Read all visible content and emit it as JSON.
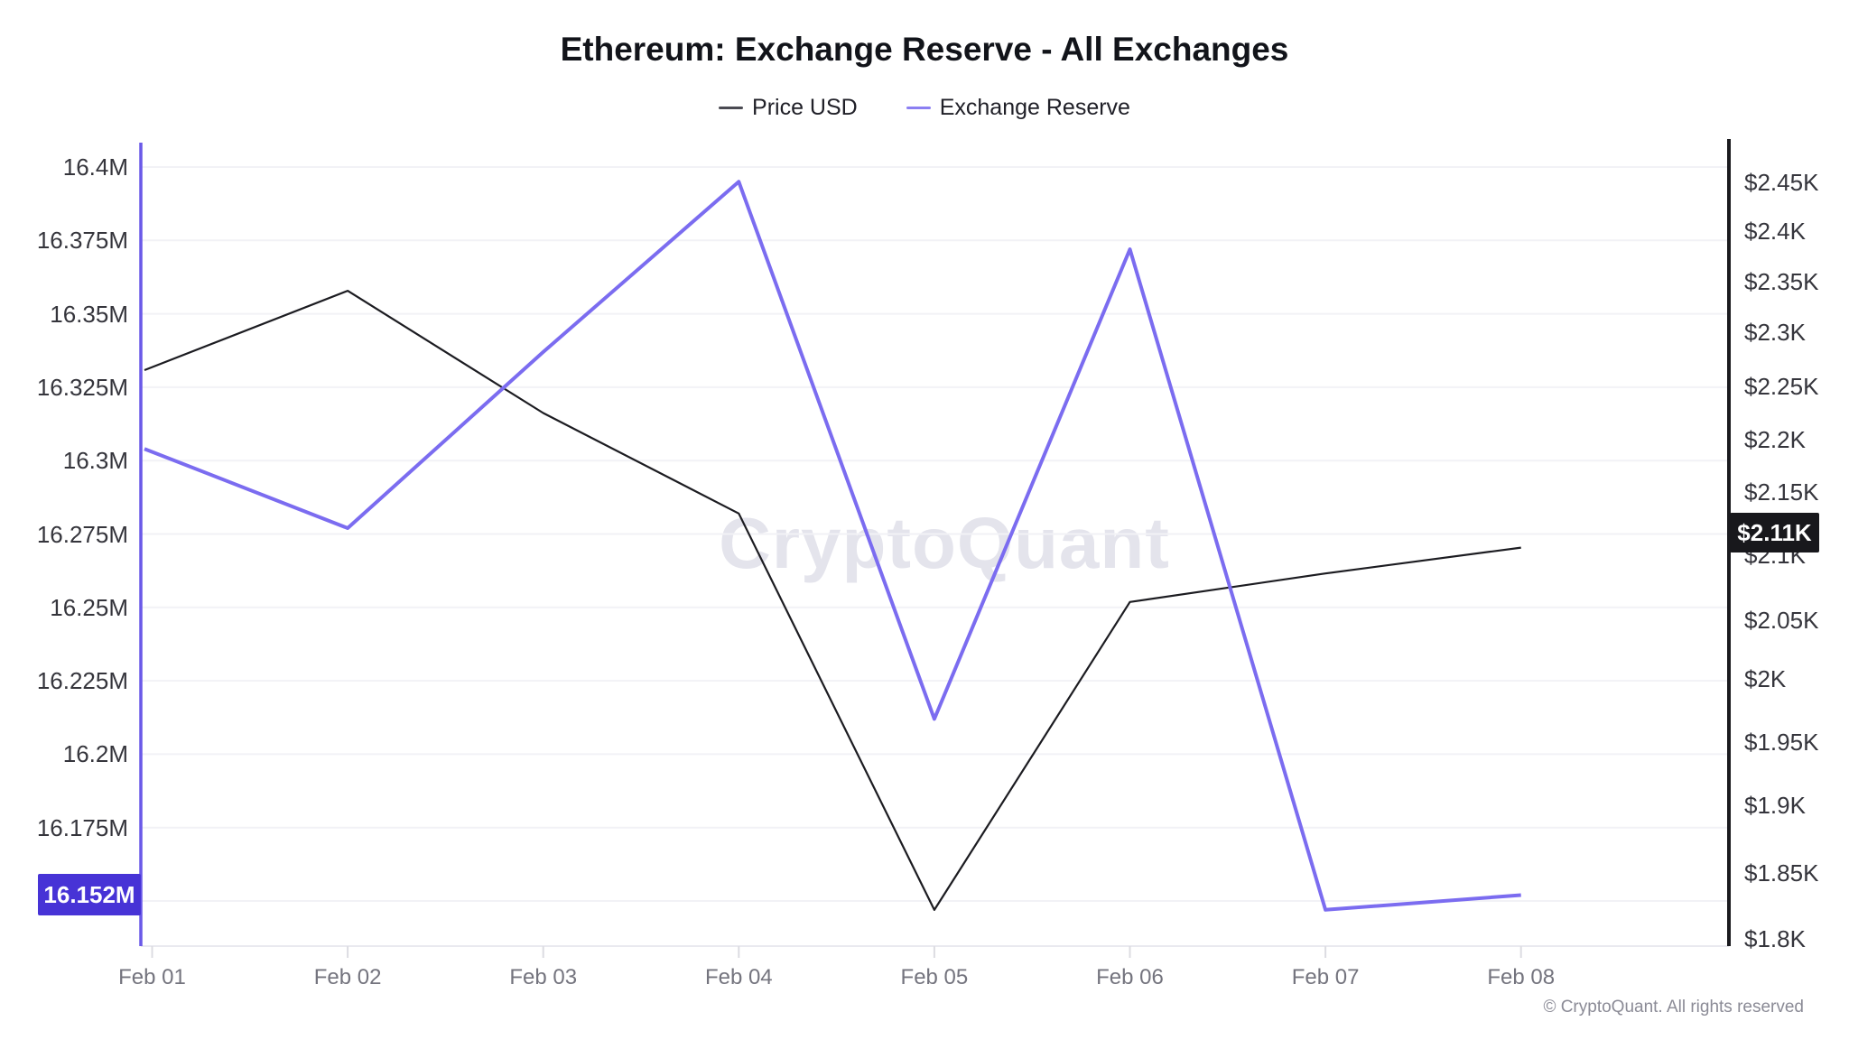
{
  "header": {
    "title": "Ethereum: Exchange Reserve - All Exchanges",
    "legend": [
      {
        "label": "Price USD",
        "color": "#4a4a52"
      },
      {
        "label": "Exchange Reserve",
        "color": "#8b7ff2"
      }
    ]
  },
  "watermark": "CryptoQuant",
  "footer": {
    "copyright": "© CryptoQuant. All rights reserved"
  },
  "badges": {
    "left": "16.152M",
    "right": "$2.11K"
  },
  "colors": {
    "price_line": "#1c1c21",
    "reserve_line": "#7b6cf0",
    "left_axis_line": "#6a59e8",
    "right_axis_line": "#1a1a1e",
    "left_badge_bg": "#4733d6",
    "right_badge_bg": "#18181c",
    "gridline": "#f2f2f6",
    "bottom_border": "#e9e9ef",
    "tick_mark": "#dcdce2"
  },
  "chart_data": {
    "type": "line",
    "title": "Ethereum: Exchange Reserve - All Exchanges",
    "categories": [
      "Feb 01",
      "Feb 02",
      "Feb 03",
      "Feb 04",
      "Feb 05",
      "Feb 06",
      "Feb 07",
      "Feb 08"
    ],
    "series": [
      {
        "name": "Price USD",
        "axis": "right",
        "unit": "USD",
        "color": "#1c1c21",
        "values": [
          2265,
          2341,
          2225,
          2133,
          1822,
          2064,
          2086,
          2106
        ]
      },
      {
        "name": "Exchange Reserve",
        "axis": "left",
        "unit": "million ETH",
        "color": "#7b6cf0",
        "values": [
          16.304,
          16.277,
          16.337,
          16.395,
          16.212,
          16.372,
          16.147,
          16.152
        ]
      }
    ],
    "left_axis": {
      "scale": "linear",
      "tick_labels": [
        "16.4M",
        "16.375M",
        "16.35M",
        "16.325M",
        "16.3M",
        "16.275M",
        "16.25M",
        "16.225M",
        "16.2M",
        "16.175M"
      ],
      "tick_values": [
        16.4,
        16.375,
        16.35,
        16.325,
        16.3,
        16.275,
        16.25,
        16.225,
        16.2,
        16.175
      ],
      "latest_value_badge": "16.152M"
    },
    "right_axis": {
      "scale": "log",
      "tick_labels": [
        "$2.45K",
        "$2.4K",
        "$2.35K",
        "$2.3K",
        "$2.25K",
        "$2.2K",
        "$2.15K",
        "$2.1K",
        "$2.05K",
        "$2K",
        "$1.95K",
        "$1.9K",
        "$1.85K",
        "$1.8K"
      ],
      "tick_values": [
        2450,
        2400,
        2350,
        2300,
        2250,
        2200,
        2150,
        2100,
        2050,
        2000,
        1950,
        1900,
        1850,
        1800
      ],
      "latest_value_badge": "$2.11K"
    },
    "x_axis": {
      "labels": [
        "Feb 01",
        "Feb 02",
        "Feb 03",
        "Feb 04",
        "Feb 05",
        "Feb 06",
        "Feb 07",
        "Feb 08"
      ]
    },
    "legend_position": "top",
    "grid": true
  }
}
